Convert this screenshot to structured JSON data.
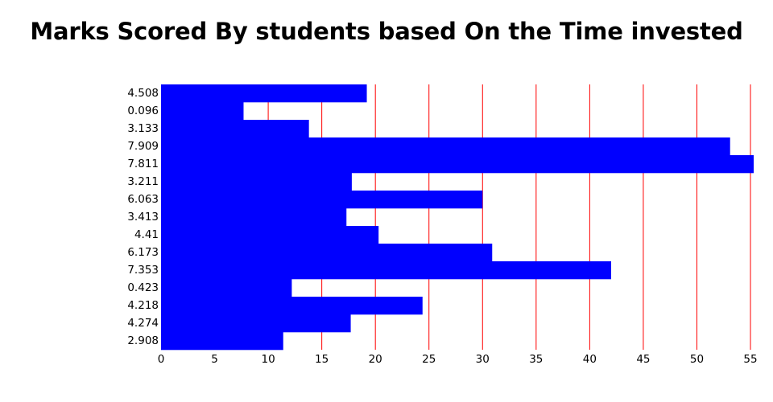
{
  "chart_data": {
    "type": "bar",
    "orientation": "horizontal",
    "title": "Marks Scored By students based On the Time invested",
    "xlabel": "",
    "ylabel": "",
    "categories": [
      "4.508",
      "0.096",
      "3.133",
      "7.909",
      "7.811",
      "3.211",
      "6.063",
      "3.413",
      "4.41",
      "6.173",
      "7.353",
      "0.423",
      "4.218",
      "4.274",
      "2.908"
    ],
    "values": [
      19.2,
      7.7,
      13.8,
      53.1,
      55.3,
      17.8,
      30.0,
      17.3,
      20.3,
      30.9,
      42.0,
      12.2,
      24.4,
      17.7,
      11.4
    ],
    "x_ticks": [
      0,
      5,
      10,
      15,
      20,
      25,
      30,
      35,
      40,
      45,
      50,
      55
    ],
    "xlim": [
      0,
      55.6
    ],
    "grid": "vertical",
    "colors": {
      "bar": "#0000ff",
      "grid": "#ff0000"
    },
    "legend": "none"
  }
}
